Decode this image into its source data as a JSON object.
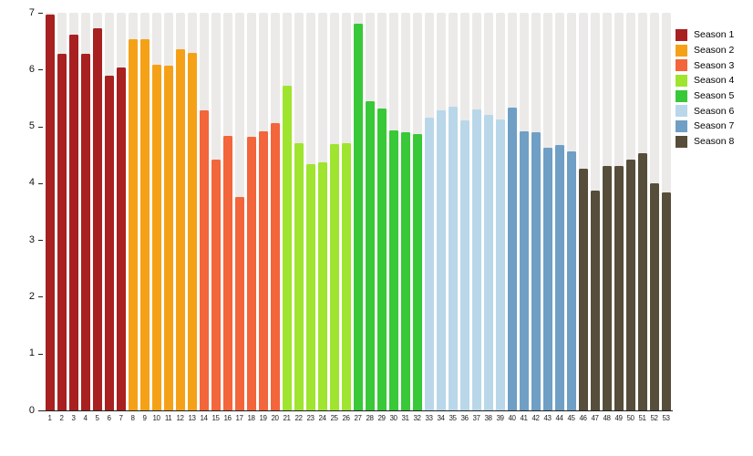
{
  "colors": {
    "page_background": "#ffffff",
    "background_column": "#ebeae8",
    "axis": "#222222"
  },
  "chart_data": {
    "type": "bar",
    "title": "",
    "xlabel": "",
    "ylabel": "",
    "ylim": [
      0,
      7
    ],
    "y_ticks": [
      0,
      1,
      2,
      3,
      4,
      5,
      6,
      7
    ],
    "x_labels": [
      1,
      2,
      3,
      4,
      5,
      6,
      7,
      8,
      9,
      10,
      11,
      12,
      13,
      14,
      15,
      16,
      17,
      18,
      19,
      20,
      21,
      22,
      23,
      24,
      25,
      26,
      27,
      28,
      29,
      30,
      31,
      32,
      33,
      34,
      35,
      36,
      37,
      38,
      39,
      40,
      41,
      42,
      43,
      44,
      45,
      46,
      47,
      48,
      49,
      50,
      51,
      52,
      53
    ],
    "grid": "background-columns",
    "legend_position": "right",
    "series": [
      {
        "name": "Season 1",
        "color": "#a82020",
        "values": [
          6.97,
          6.28,
          6.62,
          6.27,
          6.73,
          5.89,
          6.03
        ]
      },
      {
        "name": "Season 2",
        "color": "#f5a118",
        "values": [
          6.53,
          6.54,
          6.08,
          6.07,
          6.36,
          6.3
        ]
      },
      {
        "name": "Season 3",
        "color": "#f3653b",
        "values": [
          5.28,
          4.41,
          4.84,
          3.76,
          4.82,
          4.92,
          5.06
        ]
      },
      {
        "name": "Season 4",
        "color": "#9fe42f",
        "values": [
          5.71,
          4.71,
          4.33,
          4.36,
          4.69,
          4.7
        ]
      },
      {
        "name": "Season 5",
        "color": "#38c838",
        "values": [
          6.8,
          5.45,
          5.31,
          4.93,
          4.89,
          4.86
        ]
      },
      {
        "name": "Season 6",
        "color": "#b9d7e9",
        "values": [
          5.16,
          5.28,
          5.34,
          5.11,
          5.3,
          5.2,
          5.12
        ]
      },
      {
        "name": "Season 7",
        "color": "#6f9fc4",
        "values": [
          5.33,
          4.91,
          4.9,
          4.62,
          4.68,
          4.56
        ]
      },
      {
        "name": "Season 8",
        "color": "#564e3a",
        "values": [
          4.25,
          3.87,
          4.3,
          4.31,
          4.42,
          4.52,
          3.99,
          3.83
        ]
      }
    ]
  }
}
